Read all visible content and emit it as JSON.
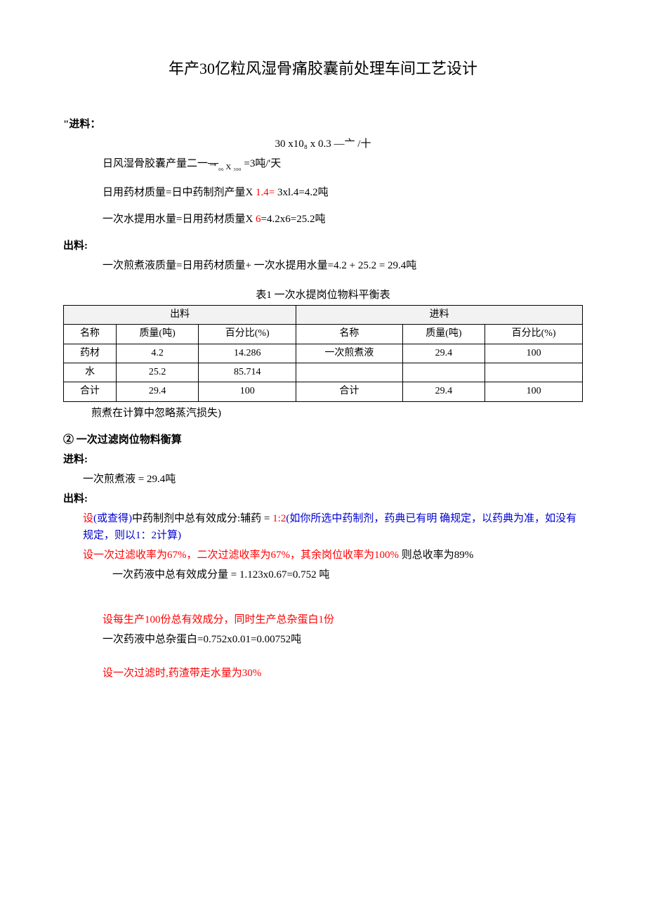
{
  "title": "年产30亿粒风湿骨痛胶囊前处理车间工艺设计",
  "sec_in": {
    "label": "\"进料：",
    "formula_top": "30 x10₈ x 0.3 —亠 /十",
    "l1_a": "日风湿骨胶囊产量二一",
    "l1_b": "₀₆ X ₃₀₀",
    "l1_c": "=3吨/'天",
    "l2_a": "日用药材质量=日中药制剂产量X ",
    "l2_red": "1.4=",
    "l2_b": " 3xl.4=4.2吨",
    "l3_a": "一次水提用水量=日用药材质量X ",
    "l3_red": "6",
    "l3_b": "=4.2x6=25.2吨"
  },
  "sec_out": {
    "label": "出料:",
    "l1": "一次煎煮液质量=日用药材质量+ 一次水提用水量=4.2 + 25.2 = 29.4吨"
  },
  "table1": {
    "caption": "表1 一次水提岗位物料平衡表",
    "head_left": "出料",
    "head_right": "进料",
    "cols": [
      "名称",
      "质量(吨)",
      "百分比(%)",
      "名称",
      "质量(吨)",
      "百分比(%)"
    ],
    "rows": [
      [
        "药材",
        "4.2",
        "14.286",
        "一次煎煮液",
        "29.4",
        "100"
      ],
      [
        "水",
        "25.2",
        "85.714",
        "",
        "",
        ""
      ],
      [
        "合计",
        "29.4",
        "100",
        "合计",
        "29.4",
        "100"
      ]
    ],
    "note": "煎煮在计算中忽略蒸汽损失)"
  },
  "sec2": {
    "heading": "② 一次过滤岗位物料衡算",
    "in_label": "进料:",
    "in_l1": "一次煎煮液 = 29.4吨",
    "out_label": "出料:",
    "o1_a": "设",
    "o1_b": "(或查得)",
    "o1_c": "中药制剂中总有效成分:辅药 = ",
    "o1_d": "1:2",
    "o1_e": "(如你所选中药制剂，药典已有明 确规定，以药典为准，如没有规定，则以1：2计算)",
    "o2_a": "设一次过滤收率为67%，二次过滤收率为67%，其余岗位收率为100% ",
    "o2_b": "则总收率为89%",
    "o3": "一次药液中总有效成分量 = 1.123x0.67=0.752 吨",
    "o4_red": "设每生产100份总有效成分，同时生产总杂蛋白1份",
    "o4_b": "一次药液中总杂蛋白=0.752x0.01=0.00752吨",
    "o5": "设一次过滤时,药渣带走水量为30%"
  }
}
